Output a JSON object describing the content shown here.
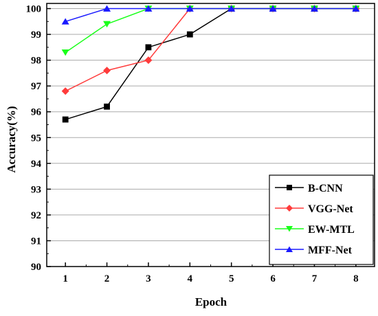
{
  "chart_data": {
    "type": "line",
    "title": "",
    "xlabel": "Epoch",
    "ylabel": "Accuracy(%)",
    "x": [
      1,
      2,
      3,
      4,
      5,
      6,
      7,
      8
    ],
    "xlim": [
      0.55,
      8.45
    ],
    "ylim": [
      90,
      100.2
    ],
    "yticks": [
      90,
      91,
      92,
      93,
      94,
      95,
      96,
      97,
      98,
      99,
      100
    ],
    "xticks": [
      1,
      2,
      3,
      4,
      5,
      6,
      7,
      8
    ],
    "grid": "horizontal",
    "legend_position": "bottom-right",
    "series": [
      {
        "name": "B-CNN",
        "color": "#000000",
        "marker": "square",
        "values": [
          95.7,
          96.2,
          98.5,
          99.0,
          100,
          100,
          100,
          100
        ]
      },
      {
        "name": "VGG-Net",
        "color": "#ff3b3b",
        "marker": "diamond",
        "values": [
          96.8,
          97.6,
          98.0,
          100,
          100,
          100,
          100,
          100
        ]
      },
      {
        "name": "EW-MTL",
        "color": "#1aff1a",
        "marker": "triangle-down",
        "values": [
          98.3,
          99.4,
          100,
          100,
          100,
          100,
          100,
          100
        ]
      },
      {
        "name": "MFF-Net",
        "color": "#1a1aff",
        "marker": "triangle-up",
        "values": [
          99.5,
          100,
          100,
          100,
          100,
          100,
          100,
          100
        ]
      }
    ]
  }
}
